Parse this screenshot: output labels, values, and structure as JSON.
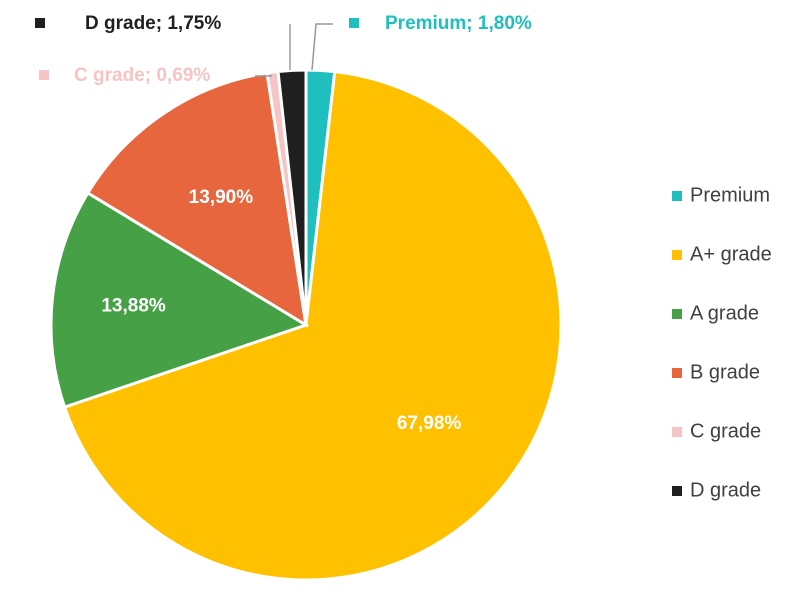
{
  "chart_data": {
    "type": "pie",
    "title": "",
    "categories": [
      "Premium",
      "A+ grade",
      "A grade",
      "B grade",
      "C grade",
      "D grade"
    ],
    "values": [
      1.8,
      67.98,
      13.88,
      13.9,
      0.69,
      1.75
    ],
    "value_labels": [
      "1,80%",
      "67,98%",
      "13,88%",
      "13,90%",
      "0,69%",
      "1,75%"
    ],
    "colors": [
      "#1fbfbf",
      "#ffc000",
      "#46a046",
      "#e8663e",
      "#f6c4c4",
      "#1f1f1f"
    ],
    "outside_labels": [
      {
        "index": 5,
        "text": "D grade; 1,75%",
        "color": "#1f1f1f"
      },
      {
        "index": 0,
        "text": "Premium; 1,80%",
        "color": "#1fbfbf"
      },
      {
        "index": 4,
        "text": "C grade; 0,69%",
        "color": "#f6c4c4"
      }
    ],
    "legend": {
      "position": "right",
      "entries": [
        "Premium",
        "A+ grade",
        "A grade",
        "B grade",
        "C grade",
        "D grade"
      ]
    },
    "start_angle": "12 o'clock",
    "direction": "clockwise"
  }
}
